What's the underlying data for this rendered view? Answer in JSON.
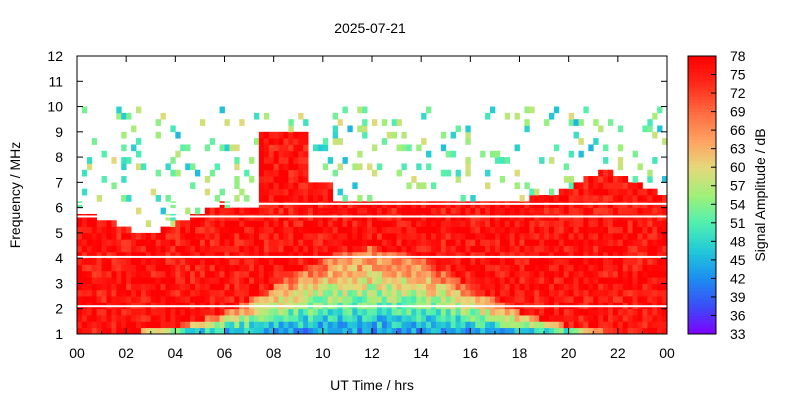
{
  "chart_data": {
    "type": "heatmap",
    "title": "2025-07-21",
    "xlabel": "UT Time / hrs",
    "ylabel": "Frequency / MHz",
    "colorbar_label": "Signal Amplitude / dB",
    "x_range": [
      0,
      24
    ],
    "y_range": [
      1,
      12
    ],
    "x_ticks": [
      "00",
      "02",
      "04",
      "06",
      "08",
      "10",
      "12",
      "14",
      "16",
      "18",
      "20",
      "22",
      "00"
    ],
    "y_ticks": [
      "1",
      "2",
      "3",
      "4",
      "5",
      "6",
      "7",
      "8",
      "9",
      "10",
      "11",
      "12"
    ],
    "colorbar_ticks": [
      "33",
      "36",
      "39",
      "42",
      "45",
      "48",
      "51",
      "54",
      "57",
      "60",
      "63",
      "66",
      "69",
      "72",
      "75",
      "78"
    ],
    "colorbar_range": [
      33,
      78
    ],
    "colormap": [
      "#7f00ff",
      "#3b4cf6",
      "#1c8ef0",
      "#22c8d8",
      "#4ff0b0",
      "#a0f078",
      "#e6d87a",
      "#ffa060",
      "#ff6a40",
      "#ff2a1a",
      "#ff0000"
    ],
    "approx_region_levels_db": [
      {
        "region": "strong band below ~4 MHz most of day",
        "x": [
          0,
          24
        ],
        "y": [
          1,
          4
        ],
        "value": 76
      },
      {
        "region": "daytime enhancement 08-09.5 UT",
        "x": [
          7.6,
          9.4
        ],
        "y": [
          1,
          9
        ],
        "value": 78
      },
      {
        "region": "evening/night enhancement 18-24 UT",
        "x": [
          18,
          24
        ],
        "y": [
          1,
          7.5
        ],
        "value": 76
      },
      {
        "region": "midday reduced amplitude 06-18 UT",
        "x": [
          6,
          18
        ],
        "y": [
          1,
          3.5
        ],
        "value": 55
      },
      {
        "region": "sparse weak returns above ~8 MHz",
        "x": [
          0,
          24
        ],
        "y": [
          8,
          10
        ],
        "value": 50
      }
    ]
  }
}
